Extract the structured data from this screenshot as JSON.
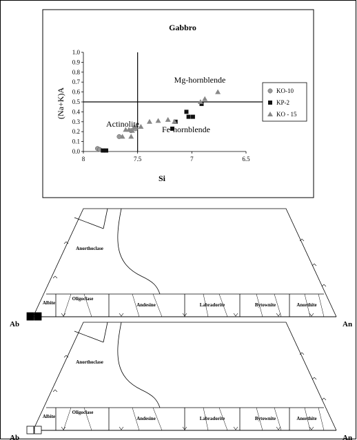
{
  "chart_data": [
    {
      "type": "scatter",
      "title": "Gabbro",
      "xlabel": "Si",
      "ylabel": "(Na+K)A",
      "xlim": [
        8,
        6.5
      ],
      "ylim": [
        0,
        1
      ],
      "x_reversed": true,
      "xticks": [
        "8",
        "7.5",
        "7",
        "6.5"
      ],
      "yticks": [
        "0.0",
        "0.1",
        "0.2",
        "0.3",
        "0.4",
        "0.5",
        "0.6",
        "0.7",
        "0.8",
        "0.9",
        "1.0"
      ],
      "dividers": {
        "x": 7.5,
        "y": 0.5
      },
      "fields": [
        "Mg-hornblende",
        "Actinolite",
        "Fe-hornblende"
      ],
      "legend_position": "right",
      "series": [
        {
          "name": "KO-10",
          "marker": "circle",
          "color": "#999999",
          "points": [
            [
              7.87,
              0.03
            ],
            [
              7.85,
              0.02
            ],
            [
              7.67,
              0.15
            ],
            [
              7.52,
              0.23
            ],
            [
              7.56,
              0.21
            ]
          ]
        },
        {
          "name": "KP-2",
          "marker": "square",
          "color": "#111111",
          "points": [
            [
              7.82,
              0.01
            ],
            [
              7.79,
              0.01
            ],
            [
              7.05,
              0.4
            ],
            [
              7.03,
              0.35
            ],
            [
              6.99,
              0.35
            ],
            [
              7.15,
              0.3
            ],
            [
              7.18,
              0.23
            ],
            [
              6.91,
              0.48
            ]
          ]
        },
        {
          "name": "KO - 15",
          "marker": "triangle",
          "color": "#888888",
          "points": [
            [
              7.64,
              0.15
            ],
            [
              7.61,
              0.22
            ],
            [
              7.58,
              0.22
            ],
            [
              7.55,
              0.21
            ],
            [
              7.56,
              0.15
            ],
            [
              7.53,
              0.25
            ],
            [
              7.47,
              0.25
            ],
            [
              7.39,
              0.3
            ],
            [
              7.31,
              0.31
            ],
            [
              7.22,
              0.32
            ],
            [
              7.16,
              0.3
            ],
            [
              6.92,
              0.5
            ],
            [
              6.88,
              0.53
            ],
            [
              6.76,
              0.6
            ]
          ]
        }
      ]
    },
    {
      "type": "ternary",
      "corners": {
        "left": "Ab",
        "right": "An"
      },
      "fields": [
        "Anorthoclase",
        "Albite",
        "Oligoclase",
        "Andesine",
        "Labradorite",
        "Bytownite",
        "Anorthite"
      ],
      "series": [
        {
          "marker": "filled-square",
          "color": "#000000",
          "points_at": "Ab",
          "count": 2
        }
      ]
    },
    {
      "type": "ternary",
      "corners": {
        "left": "Ab",
        "right": "An"
      },
      "fields": [
        "Anorthoclase",
        "Albite",
        "Oligoclase",
        "Andesine",
        "Labradorite",
        "Bytownite",
        "Anorthite"
      ],
      "series": [
        {
          "marker": "open-square",
          "color": "#000000",
          "points_at": "Ab",
          "count": 2
        }
      ]
    }
  ]
}
